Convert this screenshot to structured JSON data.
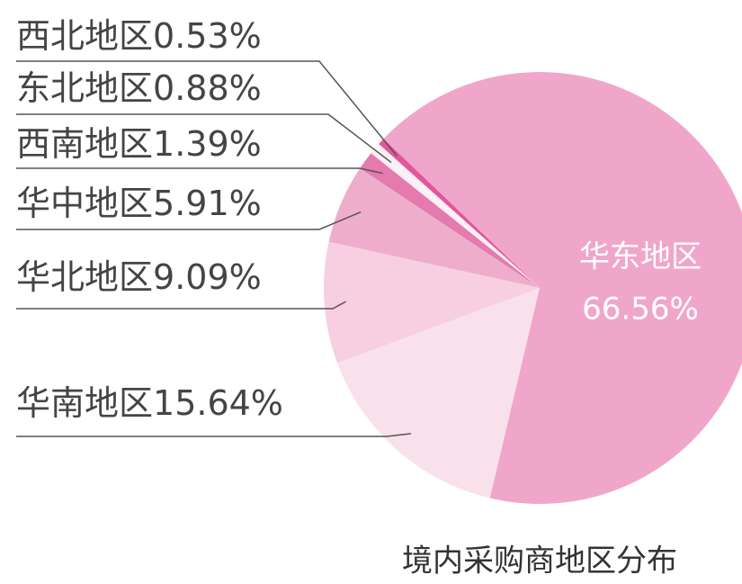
{
  "chart_data": {
    "type": "pie",
    "title": "境内采购商地区分布",
    "categories": [
      "西北地区",
      "东北地区",
      "西南地区",
      "华中地区",
      "华北地区",
      "华南地区",
      "华东地区"
    ],
    "values": [
      0.53,
      0.88,
      1.39,
      5.91,
      9.09,
      15.64,
      66.56
    ],
    "value_labels": [
      "0.53%",
      "0.88%",
      "1.39%",
      "5.91%",
      "9.09%",
      "15.64%",
      "66.56%"
    ],
    "colors": [
      "#e2579c",
      "#fdf0f6",
      "#e57aae",
      "#efadcc",
      "#f7cfe1",
      "#f9e1ec",
      "#f0a6ca"
    ]
  }
}
